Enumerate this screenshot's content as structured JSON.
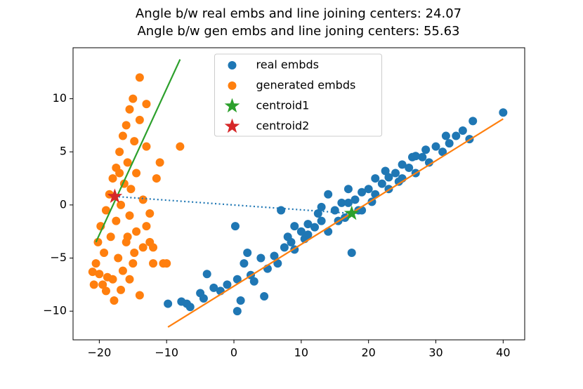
{
  "chart_data": {
    "type": "scatter",
    "title": "Angle b/w real embs and line joining centers: 24.07",
    "subtitle": "Angle b/w gen embs and line joning centers: 55.63",
    "xlim": [
      -23.9,
      43.2
    ],
    "ylim": [
      -12.7,
      14.8
    ],
    "xticks": [
      {
        "value": -20,
        "label": "−20"
      },
      {
        "value": -10,
        "label": "−10"
      },
      0,
      10,
      20,
      30,
      40
    ],
    "yticks": [
      {
        "value": -10,
        "label": "−10"
      },
      {
        "value": -5,
        "label": "−5"
      },
      0,
      5,
      10
    ],
    "legend": "upper center",
    "series": [
      {
        "name": "real embds",
        "color": "#1f77b4",
        "marker": "circle",
        "x": [
          -9.8,
          -7.8,
          -7,
          -6.5,
          -5,
          -4.5,
          -4,
          -3,
          -2,
          -1,
          0.5,
          1,
          0.5,
          1.5,
          0.2,
          2,
          2.5,
          3,
          4,
          4.5,
          5,
          6,
          6.5,
          7,
          7.5,
          8,
          8.5,
          9,
          10,
          10.5,
          11,
          12,
          12.5,
          13,
          14,
          14,
          15,
          15.5,
          16,
          16.5,
          17,
          17.5,
          18,
          18.5,
          19,
          20,
          20.5,
          21,
          22,
          22.5,
          23,
          24,
          24.5,
          25,
          26,
          26.5,
          27,
          28,
          28.5,
          29,
          30,
          31,
          31.5,
          32,
          33,
          34,
          35,
          35.5,
          40,
          19,
          21,
          23,
          25,
          27,
          13,
          11,
          9,
          17
        ],
        "y": [
          -9.3,
          -9.1,
          -9.3,
          -9.6,
          -8.3,
          -8.8,
          -6.5,
          -7.8,
          -8.1,
          -7.5,
          -10,
          -9,
          -7,
          -5.5,
          -2,
          -4.5,
          -6.6,
          -7.2,
          -5,
          -8.6,
          -6,
          -4.8,
          -5.5,
          -0.5,
          -4,
          -3,
          -3.5,
          -4.2,
          -2.5,
          -3.2,
          -1.8,
          -2.1,
          -0.8,
          -1.5,
          1,
          -2.5,
          -0.5,
          -1.5,
          0.2,
          -1.2,
          1.5,
          -4.5,
          0.5,
          -0.5,
          1.2,
          1.5,
          0.3,
          2.5,
          2,
          3.2,
          1.5,
          3,
          2.2,
          3.8,
          3.5,
          4.5,
          3,
          4.5,
          5.2,
          4,
          5.5,
          5,
          6.5,
          5.8,
          6.5,
          7,
          6.2,
          7.9,
          8.7,
          -0.5,
          1,
          2.6,
          2.5,
          4.6,
          -0.2,
          -2.8,
          -2,
          0.2
        ]
      },
      {
        "name": "generated embds",
        "color": "#ff7f0e",
        "marker": "circle",
        "x": [
          -21,
          -20.8,
          -20.5,
          -20.2,
          -20,
          -19.8,
          -19.5,
          -19.3,
          -19,
          -18.8,
          -18.5,
          -18.3,
          -18,
          -17.8,
          -18,
          -17.5,
          -17.5,
          -17.2,
          -17,
          -16.8,
          -16.5,
          -16.5,
          -16.3,
          -16,
          -16,
          -15.8,
          -15.5,
          -15.5,
          -15.3,
          -15,
          -15,
          -14.8,
          -14.5,
          -14.5,
          -14,
          -14,
          -14,
          -13.5,
          -13.5,
          -13,
          -13,
          -13,
          -12.5,
          -12.5,
          -12,
          -11.5,
          -11,
          -10.5,
          -10,
          -8,
          -12,
          -15.5,
          -16.8,
          -19,
          -17,
          -15.8,
          -14.8
        ],
        "y": [
          -6.3,
          -7.5,
          -5.5,
          -3.5,
          -6.5,
          -2,
          -7.5,
          -4.5,
          -0.5,
          -6.8,
          1,
          -3,
          -7,
          -9,
          2.5,
          -1.5,
          3.5,
          -5,
          5,
          0,
          -6.2,
          6.5,
          2,
          -3.5,
          7.5,
          4,
          9,
          -1,
          1.5,
          10,
          -5.5,
          6,
          3,
          -2.5,
          12,
          -8.5,
          8,
          -4,
          0.5,
          9.5,
          5.5,
          -2,
          -3.5,
          -0.8,
          -4,
          2.5,
          4,
          -5.5,
          -5.5,
          5.5,
          -5.5,
          -7,
          -8,
          -8.1,
          3,
          -3,
          -4.5
        ]
      },
      {
        "name": "centroid1",
        "color": "#2ca02c",
        "marker": "star",
        "x": [
          17.5
        ],
        "y": [
          -0.8
        ]
      },
      {
        "name": "centroid2",
        "color": "#d62728",
        "marker": "star",
        "x": [
          -17.7
        ],
        "y": [
          0.8
        ]
      }
    ],
    "lines": [
      {
        "color": "#2ca02c",
        "style": "solid",
        "x": [
          -20.5,
          -8
        ],
        "y": [
          -3.5,
          13.7
        ]
      },
      {
        "color": "#ff7f0e",
        "style": "solid",
        "x": [
          -9.8,
          40
        ],
        "y": [
          -11.5,
          8.1
        ]
      },
      {
        "color": "#1f77b4",
        "style": "dotted",
        "x": [
          -17.7,
          17.5
        ],
        "y": [
          0.8,
          -0.8
        ]
      }
    ]
  }
}
